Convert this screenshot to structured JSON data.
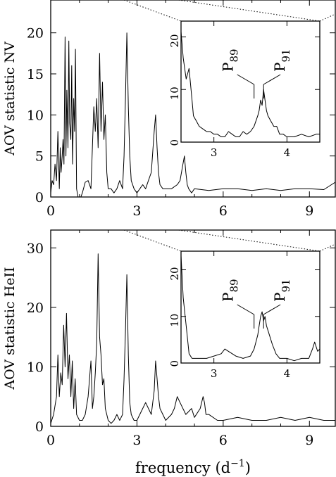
{
  "chart_data": [
    {
      "type": "line",
      "ylabel": "AOV statistic NV",
      "xlabel": "",
      "xlim": [
        0,
        9.9
      ],
      "ylim": [
        0,
        24
      ],
      "xticks": [
        0,
        3,
        6,
        9
      ],
      "yticks": [
        0,
        5,
        10,
        15,
        20
      ],
      "series": [
        {
          "x": [
            0,
            0.05,
            0.1,
            0.15,
            0.2,
            0.25,
            0.3,
            0.33,
            0.36,
            0.4,
            0.43,
            0.46,
            0.5,
            0.53,
            0.56,
            0.6,
            0.63,
            0.66,
            0.7,
            0.73,
            0.76,
            0.8,
            0.83,
            0.86,
            0.9,
            0.95,
            1.0,
            1.05,
            1.1,
            1.2,
            1.3,
            1.4,
            1.5,
            1.55,
            1.6,
            1.65,
            1.7,
            1.75,
            1.8,
            1.85,
            1.9,
            1.95,
            2.0,
            2.1,
            2.2,
            2.3,
            2.4,
            2.5,
            2.55,
            2.6,
            2.65,
            2.7,
            2.75,
            2.8,
            2.9,
            3.0,
            3.1,
            3.2,
            3.3,
            3.4,
            3.5,
            3.6,
            3.65,
            3.7,
            3.75,
            3.8,
            3.9,
            4.0,
            4.2,
            4.4,
            4.5,
            4.6,
            4.65,
            4.7,
            4.75,
            4.8,
            4.9,
            5.0,
            5.5,
            6.0,
            6.5,
            7.0,
            7.5,
            8.0,
            8.5,
            9.0,
            9.5,
            9.9
          ],
          "y": [
            0.5,
            2,
            1.5,
            4,
            2,
            8,
            1,
            6,
            3,
            5,
            7,
            4,
            19.5,
            5,
            13,
            6,
            19,
            9,
            7,
            16,
            4,
            12,
            8,
            18,
            1,
            0,
            0,
            0,
            0.5,
            1.8,
            2,
            1,
            11,
            8,
            12,
            6,
            17.5,
            8,
            14,
            7,
            10,
            3,
            1,
            1,
            0.5,
            1,
            2,
            1,
            5,
            12,
            20,
            11,
            5,
            2,
            1,
            0.5,
            1,
            1.5,
            1,
            2,
            3,
            8,
            10,
            6,
            3,
            1.5,
            1,
            1,
            1,
            1.5,
            2,
            4,
            5,
            3,
            1.5,
            1,
            0.5,
            1,
            0.8,
            1,
            1,
            0.8,
            1,
            0.8,
            1,
            1,
            0.9,
            1.8
          ]
        }
      ],
      "inset": {
        "xlim": [
          2.55,
          4.45
        ],
        "ylim": [
          0,
          23
        ],
        "xticks": [
          3,
          4
        ],
        "yticks": [
          0,
          10,
          20
        ],
        "labels": [
          {
            "main": "P",
            "sub": "89",
            "x": 3.55
          },
          {
            "main": "P",
            "sub": "91",
            "x": 3.68
          }
        ],
        "x": [
          2.55,
          2.58,
          2.62,
          2.66,
          2.7,
          2.72,
          2.76,
          2.8,
          2.85,
          2.9,
          2.95,
          3.0,
          3.05,
          3.1,
          3.15,
          3.2,
          3.25,
          3.3,
          3.35,
          3.4,
          3.45,
          3.5,
          3.55,
          3.6,
          3.62,
          3.64,
          3.66,
          3.68,
          3.7,
          3.72,
          3.74,
          3.78,
          3.82,
          3.86,
          3.9,
          3.95,
          4.0,
          4.1,
          4.2,
          4.3,
          4.4,
          4.45
        ],
        "y": [
          21,
          16,
          12,
          14,
          8,
          5,
          4,
          3,
          2.5,
          2,
          2,
          1.5,
          1.5,
          1,
          1,
          2,
          1.5,
          1,
          1,
          2,
          1.5,
          2,
          3,
          5,
          6,
          8,
          7,
          10,
          8,
          6,
          5,
          4,
          3,
          3,
          1.5,
          1.5,
          1,
          1,
          1.5,
          1,
          1.5,
          1.5
        ]
      }
    },
    {
      "type": "line",
      "ylabel": "AOV statistic HeII",
      "xlabel": "frequency (d",
      "xlabel_sup": "−1",
      "xlabel_end": ")",
      "xlim": [
        0,
        9.9
      ],
      "ylim": [
        0,
        33
      ],
      "xticks": [
        0,
        3,
        6,
        9
      ],
      "yticks": [
        0,
        10,
        20,
        30
      ],
      "series": [
        {
          "x": [
            0,
            0.1,
            0.2,
            0.25,
            0.3,
            0.35,
            0.4,
            0.45,
            0.5,
            0.55,
            0.6,
            0.65,
            0.7,
            0.75,
            0.8,
            0.85,
            0.9,
            1.0,
            1.1,
            1.2,
            1.3,
            1.35,
            1.4,
            1.45,
            1.5,
            1.55,
            1.6,
            1.65,
            1.7,
            1.75,
            1.8,
            1.85,
            1.9,
            2.0,
            2.1,
            2.2,
            2.3,
            2.4,
            2.5,
            2.55,
            2.6,
            2.65,
            2.7,
            2.75,
            2.8,
            2.9,
            3.0,
            3.2,
            3.3,
            3.5,
            3.6,
            3.65,
            3.7,
            3.75,
            3.8,
            3.9,
            4.0,
            4.2,
            4.3,
            4.4,
            4.5,
            4.7,
            4.9,
            5.0,
            5.2,
            5.3,
            5.35,
            5.4,
            5.5,
            5.8,
            6.0,
            6.5,
            7.0,
            7.5,
            8.0,
            8.5,
            9.0,
            9.5,
            9.9
          ],
          "y": [
            0.5,
            2,
            5,
            12,
            5,
            9,
            7,
            17,
            10,
            19,
            8,
            12,
            5,
            11,
            3,
            8,
            2,
            1,
            1,
            2,
            5,
            8,
            11,
            3,
            5,
            9,
            14,
            29,
            15,
            12,
            7,
            8,
            3,
            1,
            0.5,
            1,
            2,
            1,
            2,
            8,
            16,
            25.5,
            12,
            4,
            2,
            1,
            1,
            3,
            4,
            2,
            6,
            11,
            8,
            5,
            3,
            2,
            1,
            2,
            3,
            5,
            4,
            2,
            3,
            1.5,
            3,
            5,
            4,
            2,
            2,
            1,
            1,
            1.5,
            1,
            1,
            1.5,
            1,
            1.5,
            1,
            1
          ]
        }
      ],
      "inset": {
        "xlim": [
          2.55,
          4.45
        ],
        "ylim": [
          0,
          24
        ],
        "xticks": [
          3,
          4
        ],
        "yticks": [
          0,
          10,
          20
        ],
        "labels": [
          {
            "main": "P",
            "sub": "89",
            "x": 3.55
          },
          {
            "main": "P",
            "sub": "91",
            "x": 3.68
          }
        ],
        "x": [
          2.55,
          2.58,
          2.62,
          2.66,
          2.7,
          2.75,
          2.8,
          2.9,
          3.0,
          3.1,
          3.15,
          3.2,
          3.3,
          3.4,
          3.5,
          3.55,
          3.6,
          3.62,
          3.64,
          3.66,
          3.68,
          3.7,
          3.72,
          3.76,
          3.8,
          3.85,
          3.9,
          4.0,
          4.1,
          4.2,
          4.3,
          4.35,
          4.38,
          4.42,
          4.45
        ],
        "y": [
          23,
          14,
          8,
          2,
          1,
          1,
          1,
          1,
          1.5,
          2,
          3,
          2.5,
          1.5,
          1,
          1.5,
          3,
          6,
          8,
          10,
          11,
          9,
          10,
          8,
          6,
          4,
          2,
          1,
          1,
          0.5,
          1,
          1,
          3,
          4.5,
          2.5,
          3
        ]
      }
    }
  ]
}
